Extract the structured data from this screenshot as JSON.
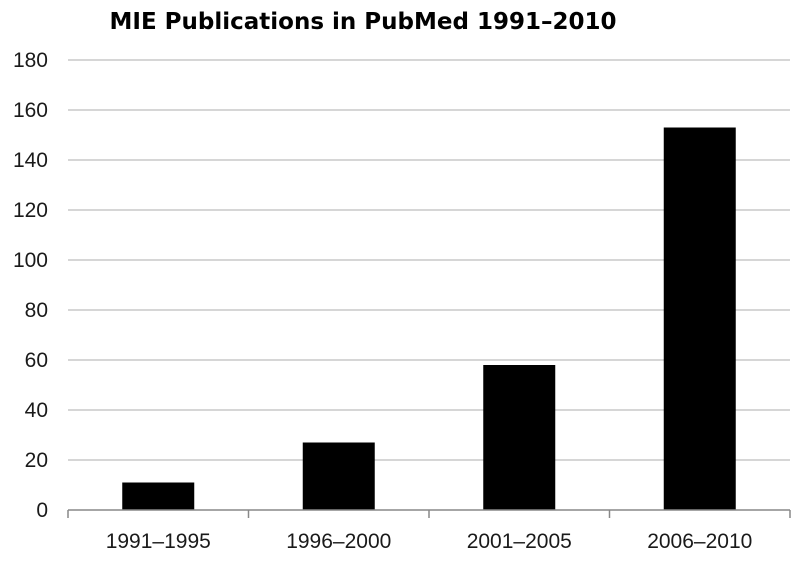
{
  "chart_data": {
    "type": "bar",
    "title": "MIE Publications in PubMed 1991–2010",
    "xlabel": "",
    "ylabel": "",
    "categories": [
      "1991–1995",
      "1996–2000",
      "2001–2005",
      "2006–2010"
    ],
    "values": [
      11,
      27,
      58,
      153
    ],
    "ylim": [
      0,
      180
    ],
    "yticks": [
      "0",
      "20",
      "40",
      "60",
      "80",
      "100",
      "120",
      "140",
      "160",
      "180"
    ],
    "grid": true,
    "legend": "none",
    "bar_color": "#000000"
  }
}
